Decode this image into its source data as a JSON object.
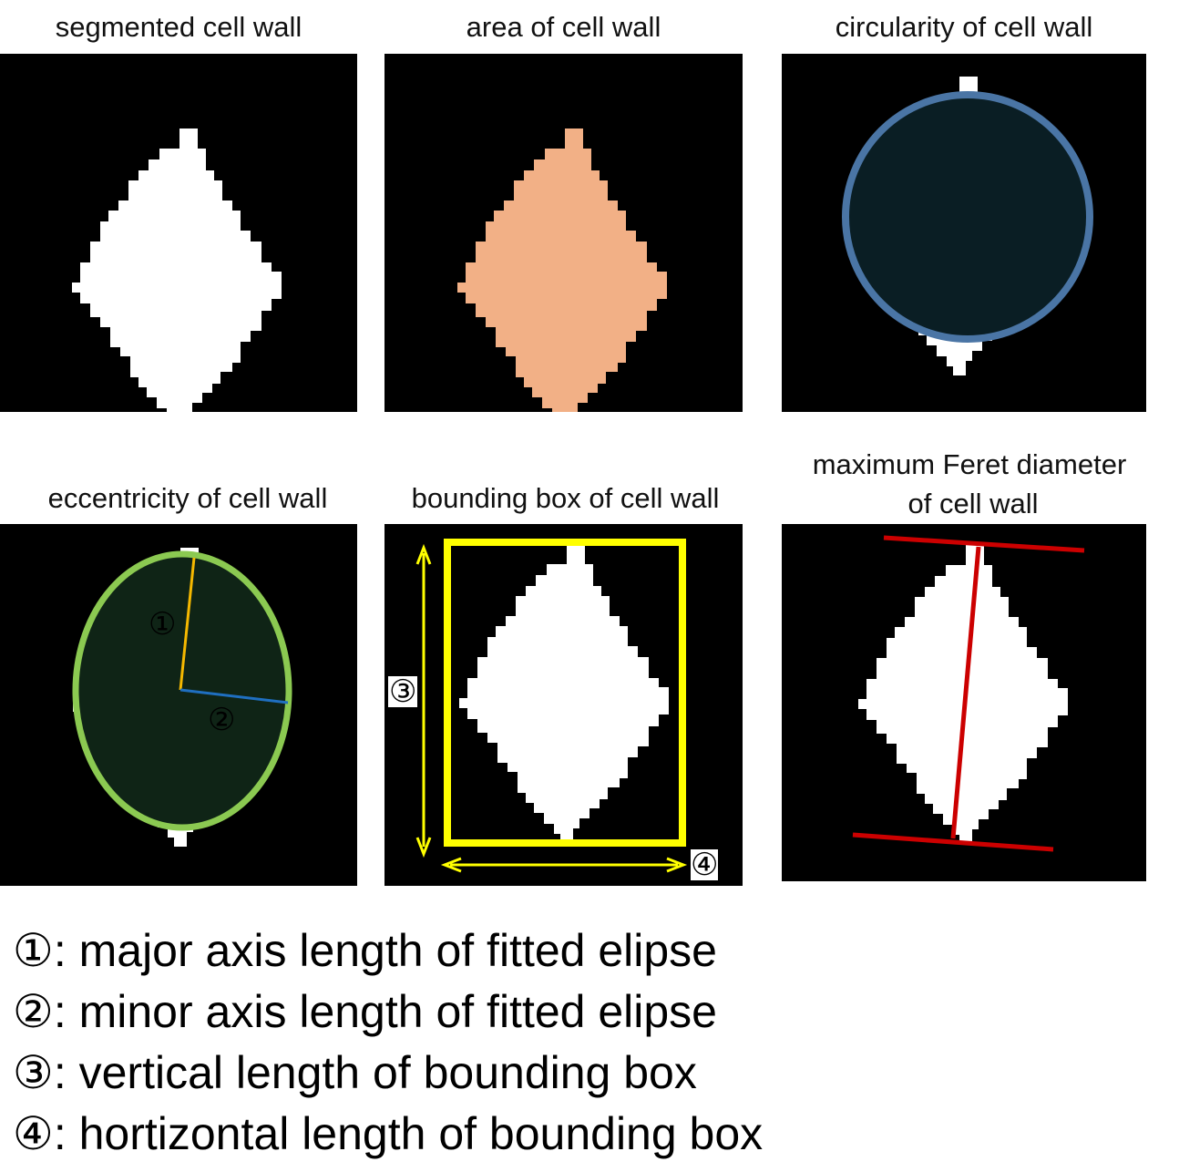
{
  "panels": {
    "segmented": {
      "title": "segmented cell wall"
    },
    "area": {
      "title": "area of cell wall"
    },
    "circularity": {
      "title": "circularity of cell wall"
    },
    "eccentricity": {
      "title": "eccentricity of cell wall",
      "marker1": "①",
      "marker2": "②"
    },
    "bounding": {
      "title": "bounding box of cell wall",
      "marker3": "③",
      "marker4": "④"
    },
    "feret": {
      "title_line1": "maximum Feret diameter",
      "title_line2": "of cell wall"
    }
  },
  "legend": [
    {
      "marker": "①",
      "text": ": major axis length of fitted elipse"
    },
    {
      "marker": "②",
      "text": ": minor axis length of fitted elipse"
    },
    {
      "marker": "③",
      "text": ": vertical length of bounding box"
    },
    {
      "marker": "④",
      "text": ": hortizontal length of bounding box"
    }
  ],
  "colors": {
    "background_panel": "#000000",
    "cell": "#ffffff",
    "area_fill": "#f2b086",
    "circularity_fill": "#d2eefa",
    "circularity_ring": "#4a75a5",
    "eccentricity_fill": "#e2f5e6",
    "ellipse_stroke": "#8bc951",
    "major_axis": "#f5b800",
    "minor_axis": "#1f6fc0",
    "bounding_box": "#ffff00",
    "feret": "#cc0000"
  },
  "icons": [
    "segmented-cell-shape",
    "fitted-ellipse",
    "fitted-circle",
    "bounding-box",
    "feret-calipers"
  ]
}
